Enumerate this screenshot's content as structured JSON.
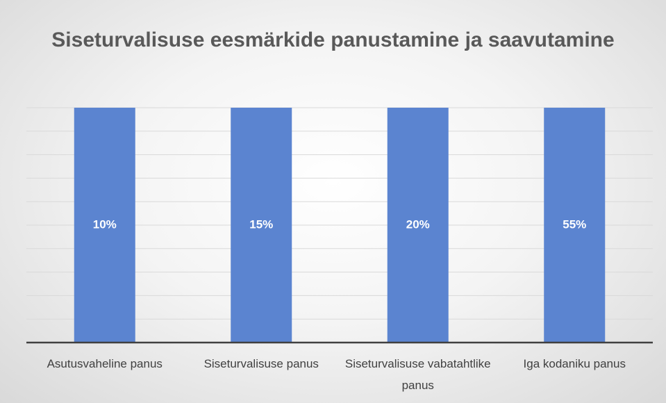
{
  "chart_data": {
    "type": "bar",
    "percent_stacked": true,
    "title": "Siseturvalisuse eesmärkide panustamine ja saavutamine",
    "categories": [
      "Asutusvaheline panus",
      "Siseturvalisuse panus",
      "Siseturvalisuse vabatahtlike panus",
      "Iga kodaniku panus"
    ],
    "values": [
      10,
      15,
      20,
      55
    ],
    "value_labels": [
      "10%",
      "15%",
      "20%",
      "55%"
    ],
    "color": "#5b84d0",
    "ylim": [
      0,
      100
    ],
    "yticks": [
      0,
      10,
      20,
      30,
      40,
      50,
      60,
      70,
      80,
      90,
      100
    ],
    "show_ytick_labels": false,
    "grid": true
  }
}
